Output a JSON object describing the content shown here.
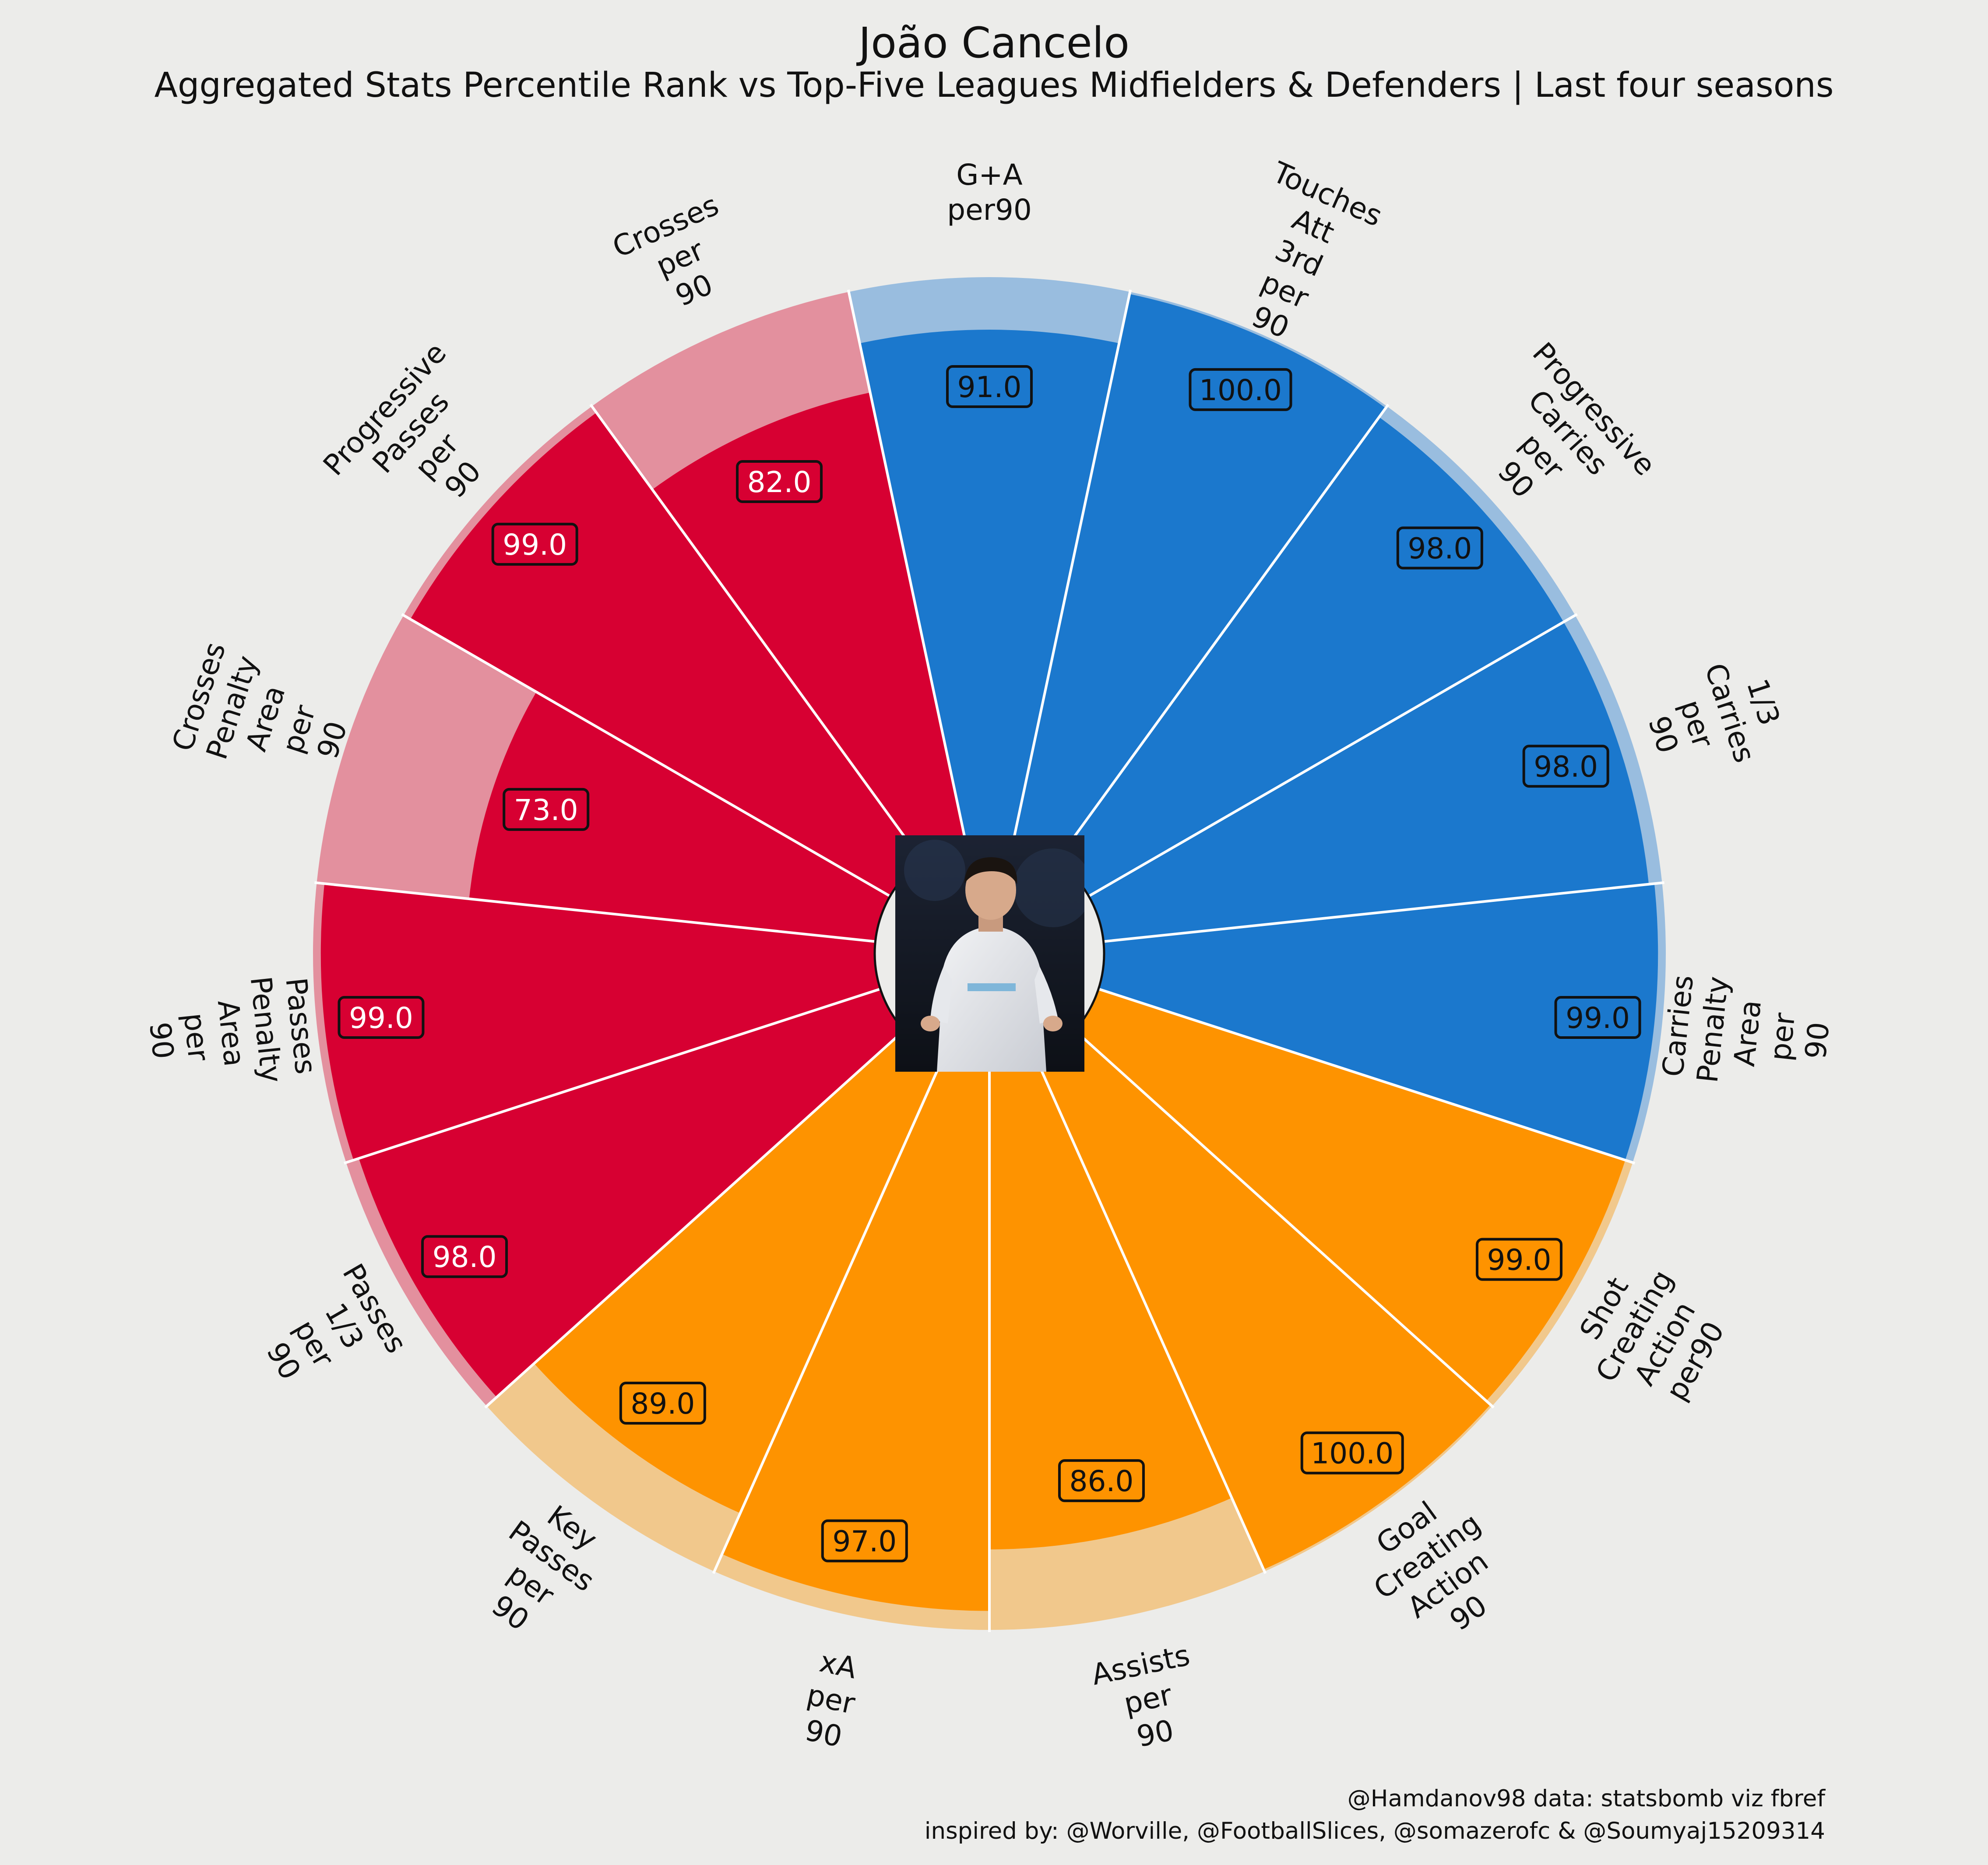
{
  "title": "João Cancelo",
  "subtitle": "Aggregated Stats Percentile Rank vs Top-Five Leagues Midfielders & Defenders | Last four seasons",
  "credit_line1": "@Hamdanov98 data: statsbomb viz fbref",
  "credit_line2": "inspired by: @Worville, @FootballSlices, @somazerofc & @Soumyaj15209314",
  "colors": {
    "background": "#ececea",
    "attacking": "#1b78cd",
    "attacking_light": "#99bddf",
    "passing": "#d70032",
    "passing_light": "#e3909e",
    "creation": "#fe9300",
    "creation_light": "#f1c88c"
  },
  "chart_data": {
    "type": "radial-bar",
    "rlim": [
      0,
      100
    ],
    "categories": [
      "G+A\nper90",
      "Touches\nAtt\n3rd\nper\n90",
      "Progressive\nCarries\nper\n90",
      "1/3\nCarries\nper\n90",
      "Carries\nPenalty\nArea\nper\n90",
      "Shot\nCreating\nAction\nper90",
      "Goal\nCreating\nAction\n90",
      "Assists\nper\n90",
      "xA\nper\n90",
      "Key\nPasses\nper\n90",
      "Passes\n1/3\nper\n90",
      "Passes\nPenalty\nArea\nper\n90",
      "Crosses\nPenalty\nArea\nper\n90",
      "Progressive\nPasses\nper\n90",
      "Crosses\nper\n90"
    ],
    "values": [
      91.0,
      100.0,
      98.0,
      98.0,
      99.0,
      99.0,
      100.0,
      86.0,
      97.0,
      89.0,
      98.0,
      99.0,
      73.0,
      99.0,
      82.0
    ],
    "value_labels": [
      "91.0",
      "100.0",
      "98.0",
      "98.0",
      "99.0",
      "99.0",
      "100.0",
      "86.0",
      "97.0",
      "89.0",
      "98.0",
      "99.0",
      "73.0",
      "99.0",
      "82.0"
    ],
    "groups": [
      "attacking",
      "attacking",
      "attacking",
      "attacking",
      "attacking",
      "creation",
      "creation",
      "creation",
      "creation",
      "creation",
      "passing",
      "passing",
      "passing",
      "passing",
      "passing"
    ]
  }
}
